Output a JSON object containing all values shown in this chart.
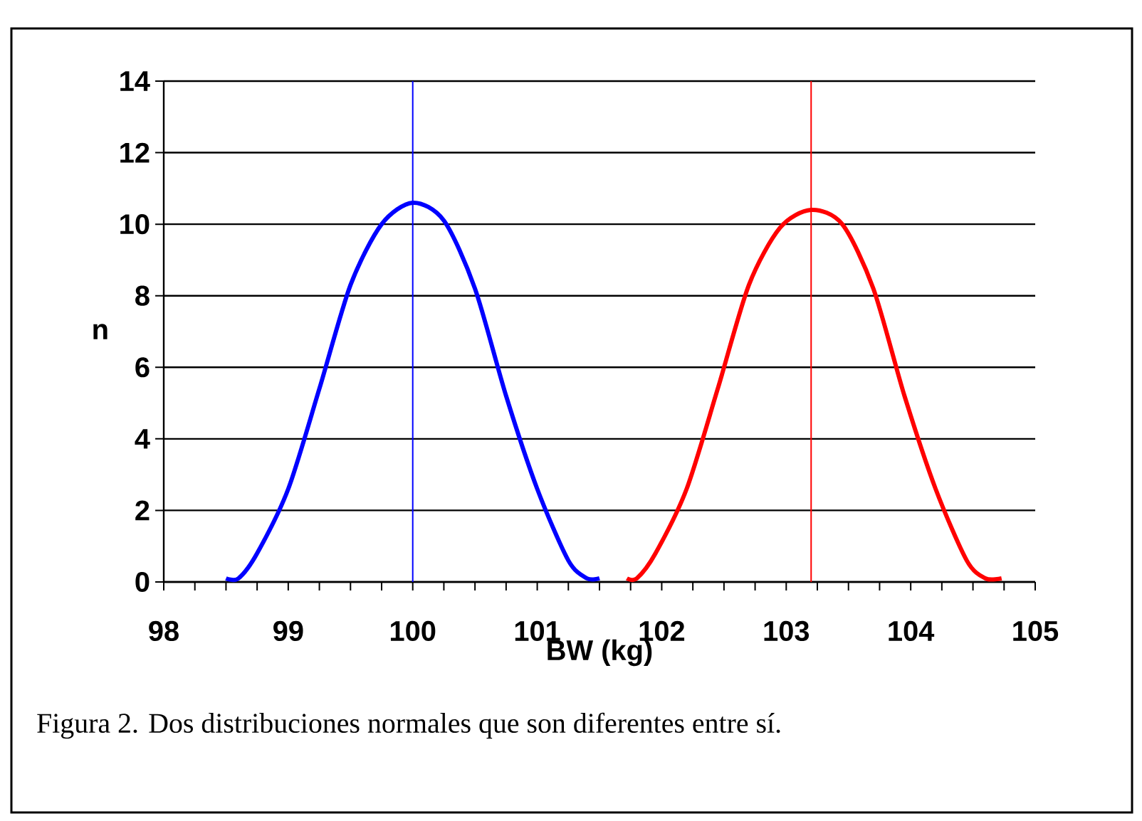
{
  "chart_data": {
    "type": "line",
    "xlabel": "BW (kg)",
    "ylabel": "n",
    "series": [
      {
        "color": "#0000ff",
        "x": [
          98.5,
          98.6,
          98.75,
          99,
          99.25,
          99.5,
          99.75,
          100,
          100.25,
          100.5,
          100.75,
          101,
          101.25,
          101.4,
          101.5
        ],
        "values": [
          0.1,
          0.1,
          0.8,
          2.6,
          5.4,
          8.3,
          10.0,
          10.6,
          10.1,
          8.2,
          5.2,
          2.6,
          0.6,
          0.1,
          0.1
        ]
      },
      {
        "color": "#ff0000",
        "x": [
          101.72,
          101.8,
          101.95,
          102.2,
          102.45,
          102.7,
          102.95,
          103.2,
          103.45,
          103.7,
          103.95,
          104.2,
          104.45,
          104.6,
          104.73
        ],
        "values": [
          0.1,
          0.1,
          0.8,
          2.6,
          5.4,
          8.3,
          9.9,
          10.4,
          10.0,
          8.2,
          5.2,
          2.6,
          0.6,
          0.1,
          0.1
        ]
      }
    ],
    "xlim": [
      98,
      105
    ],
    "xticks": [
      98,
      99,
      100,
      101,
      102,
      103,
      104,
      105
    ],
    "ylim": [
      0,
      14
    ],
    "yticks": [
      0,
      2,
      4,
      6,
      8,
      10,
      12,
      14
    ],
    "grid": "y",
    "marker": "none",
    "line_style": "solid",
    "ref_lines": [
      {
        "axis": "x",
        "value": 100,
        "color": "#0000ff"
      },
      {
        "axis": "x",
        "value": 103.2,
        "color": "#ff0000"
      }
    ],
    "annotations": [
      "Figura 2. Dos distribuciones normales que son diferentes entre sí."
    ]
  }
}
